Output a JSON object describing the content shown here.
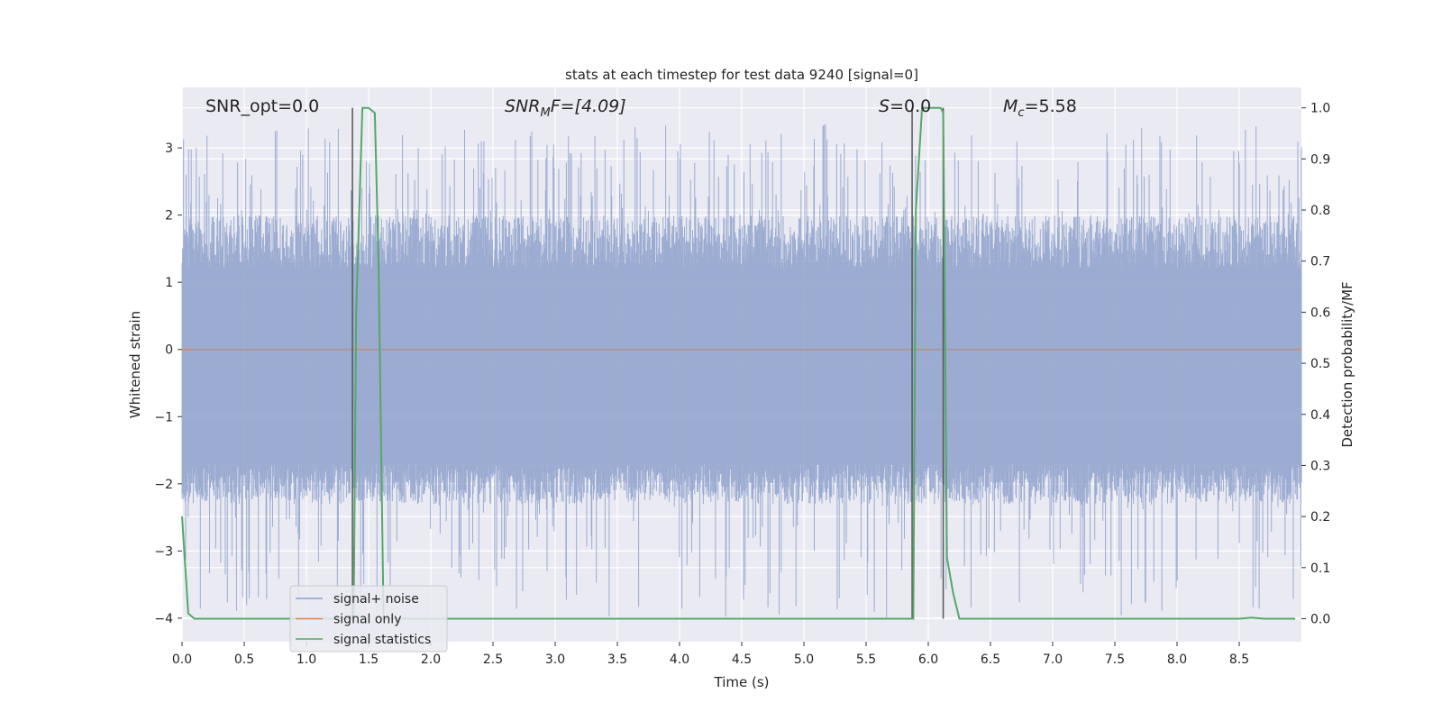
{
  "chart_data": {
    "type": "line",
    "title": "stats at each timestep for test data 9240 [signal=0]",
    "xlabel": "Time (s)",
    "ylabel_left": "Whitened strain",
    "ylabel_right": "Detection probability/MF",
    "xlim": [
      0.0,
      9.0
    ],
    "ylim_left": [
      -4.35,
      3.9
    ],
    "ylim_right": [
      -0.045,
      1.04
    ],
    "xticks": [
      "0.0",
      "0.5",
      "1.0",
      "1.5",
      "2.0",
      "2.5",
      "3.0",
      "3.5",
      "4.0",
      "4.5",
      "5.0",
      "5.5",
      "6.0",
      "6.5",
      "7.0",
      "7.5",
      "8.0",
      "8.5"
    ],
    "yticks_left": [
      "3",
      "2",
      "1",
      "0",
      "−1",
      "−2",
      "−3",
      "−4"
    ],
    "yticks_right": [
      "1.0",
      "0.9",
      "0.8",
      "0.7",
      "0.6",
      "0.5",
      "0.4",
      "0.3",
      "0.2",
      "0.1",
      "0.0"
    ],
    "grid": true,
    "legend_position": "lower-left",
    "annotations": {
      "snr_opt": "SNR_opt=0.0",
      "snr_mf_sym": "SNR",
      "snr_mf_sub": "M",
      "snr_mf_rest": "F=[4.09]",
      "s_sym": "S",
      "s_rest": "=0.0",
      "mc_sym": "M",
      "mc_sub": "c",
      "mc_rest": "=5.58"
    },
    "series": [
      {
        "name": "signal+ noise",
        "color": "#8da0cb",
        "axis": "left",
        "description_of_envelope": {
          "x": [
            0.0,
            9.0
          ],
          "typical_upper": 1.2,
          "typical_lower": -1.7,
          "peak_upper": 3.35,
          "peak_lower": -4.0
        }
      },
      {
        "name": "signal only",
        "color": "#dd8452",
        "axis": "left",
        "x": [
          0.0,
          9.0
        ],
        "y": [
          0.0,
          0.0
        ]
      },
      {
        "name": "signal statistics",
        "color": "#55a868",
        "axis": "right",
        "x": [
          0.0,
          0.05,
          0.1,
          0.15,
          1.3,
          1.38,
          1.4,
          1.45,
          1.5,
          1.55,
          1.58,
          1.62,
          1.7,
          5.85,
          5.88,
          5.9,
          5.95,
          6.0,
          6.05,
          6.1,
          6.12,
          6.15,
          6.2,
          6.25,
          8.5,
          8.6,
          8.7,
          8.95
        ],
        "y": [
          0.2,
          0.01,
          0.0,
          0.0,
          0.0,
          0.0,
          0.6,
          1.0,
          1.0,
          0.99,
          0.7,
          0.0,
          0.0,
          0.0,
          0.0,
          0.8,
          1.0,
          1.0,
          1.0,
          1.0,
          0.99,
          0.12,
          0.05,
          0.0,
          0.0,
          0.002,
          0.0,
          0.0
        ]
      }
    ],
    "vertical_lines": {
      "color": "#555555",
      "x": [
        1.37,
        5.87,
        6.12
      ]
    }
  }
}
